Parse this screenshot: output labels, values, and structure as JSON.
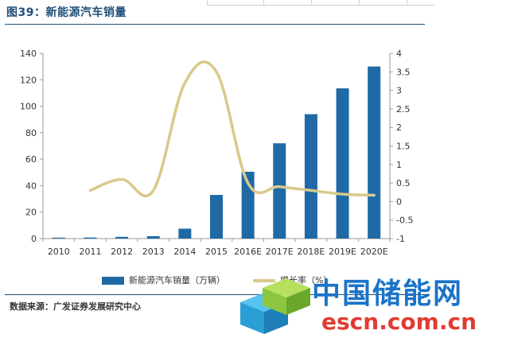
{
  "figure": {
    "title": "图39：新能源汽车销量",
    "source": "数据来源：广发证券发展研究中心"
  },
  "watermark": {
    "brand_cn": "中国储能网",
    "brand_url": "escn.com.cn"
  },
  "legend": {
    "bar_label": "新能源汽车销量（万辆）",
    "line_label": "增长率（%）"
  },
  "colors": {
    "bar": "#1f6aa6",
    "line": "#d9c98a",
    "title": "#1f4e79"
  },
  "chart_data": {
    "type": "bar",
    "title": "图39：新能源汽车销量",
    "categories": [
      "2010",
      "2011",
      "2012",
      "2013",
      "2014",
      "2015",
      "2016E",
      "2017E",
      "2018E",
      "2019E",
      "2020E"
    ],
    "series": [
      {
        "name": "新能源汽车销量（万辆）",
        "type": "bar",
        "axis": "left",
        "values": [
          0.7,
          0.8,
          1.3,
          1.8,
          7.5,
          33,
          50.5,
          72,
          94,
          113.5,
          130
        ]
      },
      {
        "name": "增长率（%）",
        "type": "line",
        "axis": "right",
        "values": [
          null,
          0.3,
          0.6,
          0.3,
          3.2,
          3.5,
          0.5,
          0.4,
          0.3,
          0.2,
          0.17
        ]
      }
    ],
    "y_left": {
      "ylim": [
        0,
        140
      ],
      "ticks": [
        "0",
        "20",
        "40",
        "60",
        "80",
        "100",
        "120",
        "140"
      ]
    },
    "y_right": {
      "ylim": [
        -1,
        4
      ],
      "ticks": [
        "-1",
        "-0.5",
        "0",
        "0.5",
        "1",
        "1.5",
        "2",
        "2.5",
        "3",
        "3.5",
        "4"
      ]
    },
    "grid": false,
    "legend_position": "bottom"
  }
}
